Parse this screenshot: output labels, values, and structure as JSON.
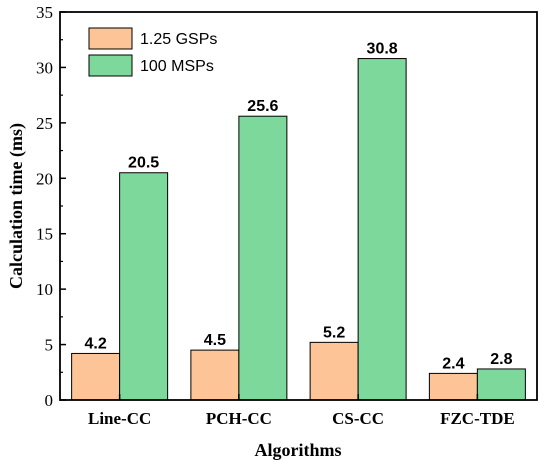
{
  "chart_data": {
    "type": "bar",
    "categories": [
      "Line-CC",
      "PCH-CC",
      "CS-CC",
      "FZC-TDE"
    ],
    "series": [
      {
        "name": "1.25 GSPs",
        "values": [
          4.2,
          4.5,
          5.2,
          2.4
        ],
        "color": "#FDC597"
      },
      {
        "name": "100 MSPs",
        "values": [
          20.5,
          25.6,
          30.8,
          2.8
        ],
        "color": "#7DD89B"
      }
    ],
    "value_labels": [
      [
        "4.2",
        "4.5",
        "5.2",
        "2.4"
      ],
      [
        "20.5",
        "25.6",
        "30.8",
        "2.8"
      ]
    ],
    "xlabel": "Algorithms",
    "ylabel": "Calculation time (ms)",
    "ylim": [
      0,
      35
    ],
    "yticks": [
      0,
      5,
      10,
      15,
      20,
      25,
      30,
      35
    ],
    "legend_position": "top-left",
    "grid": false
  }
}
